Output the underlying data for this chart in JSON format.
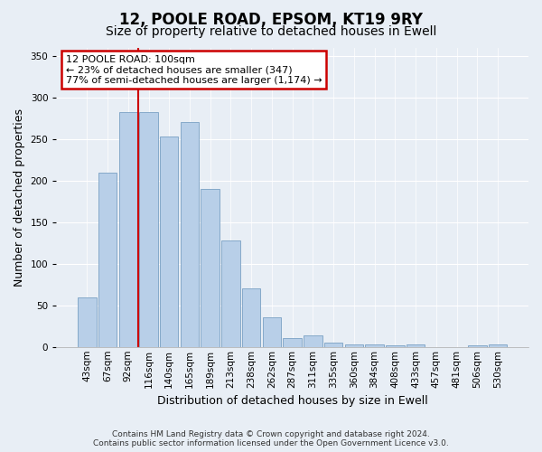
{
  "title": "12, POOLE ROAD, EPSOM, KT19 9RY",
  "subtitle": "Size of property relative to detached houses in Ewell",
  "xlabel": "Distribution of detached houses by size in Ewell",
  "ylabel": "Number of detached properties",
  "categories": [
    "43sqm",
    "67sqm",
    "92sqm",
    "116sqm",
    "140sqm",
    "165sqm",
    "189sqm",
    "213sqm",
    "238sqm",
    "262sqm",
    "287sqm",
    "311sqm",
    "335sqm",
    "360sqm",
    "384sqm",
    "408sqm",
    "433sqm",
    "457sqm",
    "481sqm",
    "506sqm",
    "530sqm"
  ],
  "bar_heights": [
    60,
    210,
    282,
    282,
    253,
    270,
    190,
    128,
    70,
    36,
    11,
    14,
    5,
    3,
    3,
    2,
    3,
    0,
    0,
    2,
    3
  ],
  "bar_color": "#b8cfe8",
  "bar_edge_color": "#7aa0c4",
  "red_line_x": 2.5,
  "annotation_line1": "12 POOLE ROAD: 100sqm",
  "annotation_line2": "← 23% of detached houses are smaller (347)",
  "annotation_line3": "77% of semi-detached houses are larger (1,174) →",
  "annotation_box_color": "#ffffff",
  "annotation_box_edge_color": "#cc0000",
  "ylim": [
    0,
    360
  ],
  "yticks": [
    0,
    50,
    100,
    150,
    200,
    250,
    300,
    350
  ],
  "footer_line1": "Contains HM Land Registry data © Crown copyright and database right 2024.",
  "footer_line2": "Contains public sector information licensed under the Open Government Licence v3.0.",
  "bg_color": "#e8eef5",
  "plot_bg_color": "#e8eef5",
  "grid_color": "#ffffff",
  "title_fontsize": 12,
  "subtitle_fontsize": 10,
  "tick_fontsize": 7.5,
  "label_fontsize": 9,
  "annotation_fontsize": 8,
  "footer_fontsize": 6.5
}
